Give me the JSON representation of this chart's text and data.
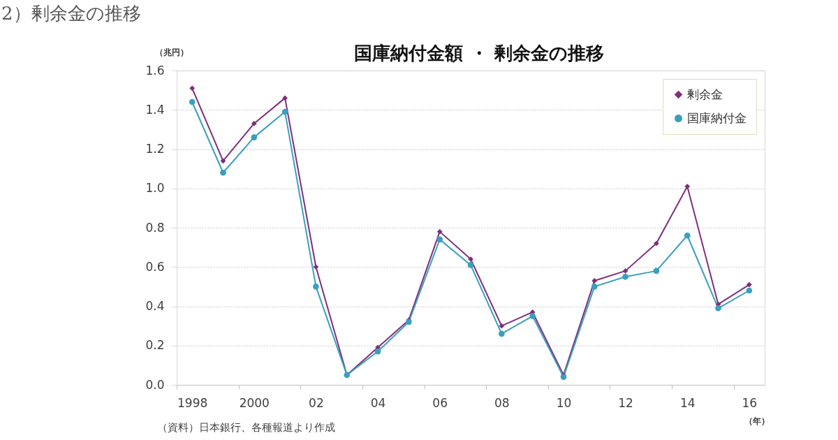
{
  "chart_data": {
    "type": "line",
    "title": "国庫納付金額 ・ 剰余金の推移",
    "xlabel": "（年）",
    "ylabel": "（兆円）",
    "annotations": [
      "2）剰余金の推移",
      "（資料）日本銀行、各種報道より作成"
    ],
    "categories": [
      "1998",
      null,
      "2000",
      null,
      "02",
      null,
      "04",
      null,
      "06",
      null,
      "08",
      null,
      "10",
      null,
      "12",
      null,
      "14",
      null,
      "16"
    ],
    "series": [
      {
        "name": "剰余金",
        "color": "#7e2f7a",
        "marker": "diamond",
        "line_style": "solid",
        "values": [
          1.51,
          1.14,
          1.33,
          1.46,
          0.6,
          0.05,
          0.19,
          0.33,
          0.78,
          0.64,
          0.3,
          0.37,
          0.05,
          0.53,
          0.58,
          0.72,
          1.01,
          0.41,
          0.51
        ]
      },
      {
        "name": "国庫納付金",
        "color": "#3a9fbf",
        "marker": "circle",
        "line_style": "solid",
        "values": [
          1.44,
          1.08,
          1.26,
          1.39,
          0.5,
          0.05,
          0.17,
          0.32,
          0.74,
          0.61,
          0.26,
          0.35,
          0.04,
          0.5,
          0.55,
          0.58,
          0.76,
          0.39,
          0.48
        ]
      }
    ],
    "ylim": [
      0,
      1.6
    ],
    "yticks": [
      {
        "value": 0,
        "label": "0.0"
      },
      0.2,
      0.4,
      0.6,
      0.8,
      {
        "value": 1,
        "label": "1.0"
      },
      1.2,
      1.4,
      1.6
    ],
    "grid": "y",
    "legend": "top right"
  }
}
